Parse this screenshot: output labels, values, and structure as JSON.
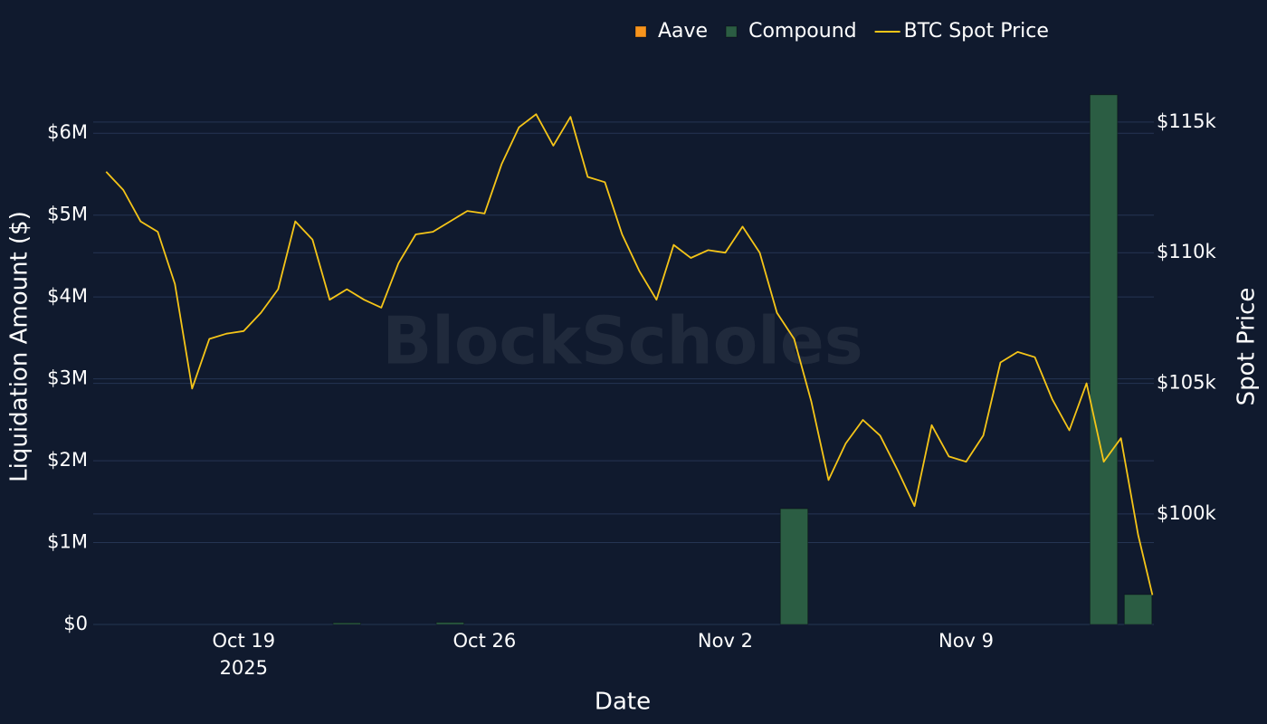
{
  "chart_data": {
    "type": "bar",
    "legend": "top",
    "grid": true,
    "watermark": "BlockScholes",
    "xlabel": "Date",
    "ylabel": "Liquidation Amount ($)",
    "y2label": "Spot Price",
    "x": [
      "2025-10-15",
      "2025-10-16",
      "2025-10-17",
      "2025-10-18",
      "2025-10-19",
      "2025-10-20",
      "2025-10-21",
      "2025-10-22",
      "2025-10-23",
      "2025-10-24",
      "2025-10-25",
      "2025-10-26",
      "2025-10-27",
      "2025-10-28",
      "2025-10-29",
      "2025-10-30",
      "2025-10-31",
      "2025-11-01",
      "2025-11-02",
      "2025-11-03",
      "2025-11-04",
      "2025-11-05",
      "2025-11-06",
      "2025-11-07",
      "2025-11-08",
      "2025-11-09",
      "2025-11-10",
      "2025-11-11",
      "2025-11-12",
      "2025-11-13",
      "2025-11-14"
    ],
    "xlim": [
      "2025-10-14 15:00",
      "2025-11-14 11:00"
    ],
    "xticks": [
      {
        "value": "2025-10-19",
        "label": "Oct 19"
      },
      {
        "value": "2025-10-26",
        "label": "Oct 26"
      },
      {
        "value": "2025-11-02",
        "label": "Nov 2"
      },
      {
        "value": "2025-11-09",
        "label": "Nov 9"
      }
    ],
    "xtick_year": "2025",
    "ylim": [
      0,
      6500000
    ],
    "yticks": [
      {
        "value": 0,
        "label": "$0"
      },
      {
        "value": 1000000,
        "label": "$1M"
      },
      {
        "value": 2000000,
        "label": "$2M"
      },
      {
        "value": 3000000,
        "label": "$3M"
      },
      {
        "value": 4000000,
        "label": "$4M"
      },
      {
        "value": 5000000,
        "label": "$5M"
      },
      {
        "value": 6000000,
        "label": "$6M"
      }
    ],
    "y2lim": [
      95770,
      116140
    ],
    "y2ticks": [
      {
        "value": 100000,
        "label": "$100k"
      },
      {
        "value": 105000,
        "label": "$105k"
      },
      {
        "value": 110000,
        "label": "$110k"
      },
      {
        "value": 115000,
        "label": "$115k"
      }
    ],
    "series": [
      {
        "name": "Aave",
        "type": "bar",
        "color": "#f7941d",
        "values": [
          0,
          0,
          0,
          0,
          0,
          0,
          0,
          0,
          0,
          0,
          0,
          0,
          0,
          0,
          0,
          0,
          0,
          0,
          0,
          0,
          0,
          0,
          0,
          0,
          0,
          0,
          0,
          0,
          0,
          0,
          0
        ]
      },
      {
        "name": "Compound",
        "type": "bar",
        "color": "#2b5d43",
        "values": [
          0,
          0,
          0,
          0,
          0,
          0,
          0,
          20000,
          0,
          0,
          25000,
          0,
          0,
          0,
          0,
          0,
          0,
          0,
          0,
          0,
          1414000,
          0,
          0,
          0,
          0,
          0,
          0,
          0,
          0,
          6470000,
          365000
        ]
      },
      {
        "name": "BTC Spot Price",
        "type": "line",
        "axis": "y2",
        "color": "#f5c518",
        "x": [
          "2025-10-15 00:00",
          "2025-10-15 12:00",
          "2025-10-16 00:00",
          "2025-10-16 12:00",
          "2025-10-17 00:00",
          "2025-10-17 12:00",
          "2025-10-18 00:00",
          "2025-10-18 12:00",
          "2025-10-19 00:00",
          "2025-10-19 12:00",
          "2025-10-20 00:00",
          "2025-10-20 12:00",
          "2025-10-21 00:00",
          "2025-10-21 12:00",
          "2025-10-22 00:00",
          "2025-10-22 12:00",
          "2025-10-23 00:00",
          "2025-10-23 12:00",
          "2025-10-24 00:00",
          "2025-10-24 12:00",
          "2025-10-25 00:00",
          "2025-10-25 12:00",
          "2025-10-26 00:00",
          "2025-10-26 12:00",
          "2025-10-27 00:00",
          "2025-10-27 12:00",
          "2025-10-28 00:00",
          "2025-10-28 12:00",
          "2025-10-29 00:00",
          "2025-10-29 12:00",
          "2025-10-30 00:00",
          "2025-10-30 12:00",
          "2025-10-31 00:00",
          "2025-10-31 12:00",
          "2025-11-01 00:00",
          "2025-11-01 12:00",
          "2025-11-02 00:00",
          "2025-11-02 12:00",
          "2025-11-03 00:00",
          "2025-11-03 12:00",
          "2025-11-04 00:00",
          "2025-11-04 12:00",
          "2025-11-05 00:00",
          "2025-11-05 12:00",
          "2025-11-06 00:00",
          "2025-11-06 12:00",
          "2025-11-07 00:00",
          "2025-11-07 12:00",
          "2025-11-08 00:00",
          "2025-11-08 12:00",
          "2025-11-09 00:00",
          "2025-11-09 12:00",
          "2025-11-10 00:00",
          "2025-11-10 12:00",
          "2025-11-11 00:00",
          "2025-11-11 12:00",
          "2025-11-12 00:00",
          "2025-11-12 12:00",
          "2025-11-13 00:00",
          "2025-11-13 12:00",
          "2025-11-14 00:00",
          "2025-11-14 10:00"
        ],
        "values": [
          113100,
          112400,
          111200,
          110800,
          108800,
          104800,
          106700,
          106900,
          107000,
          107700,
          108600,
          111200,
          110500,
          108200,
          108600,
          108200,
          107900,
          109600,
          110700,
          110800,
          111200,
          111600,
          111500,
          113400,
          114800,
          115300,
          114100,
          115200,
          112900,
          112700,
          110700,
          109300,
          108200,
          110300,
          109800,
          110100,
          110000,
          111000,
          110000,
          107700,
          106700,
          104300,
          101300,
          102700,
          103600,
          103000,
          101700,
          100300,
          103400,
          102200,
          102000,
          103000,
          105800,
          106200,
          106000,
          104400,
          103200,
          105000,
          102000,
          102900,
          99200,
          96900
        ]
      }
    ]
  }
}
